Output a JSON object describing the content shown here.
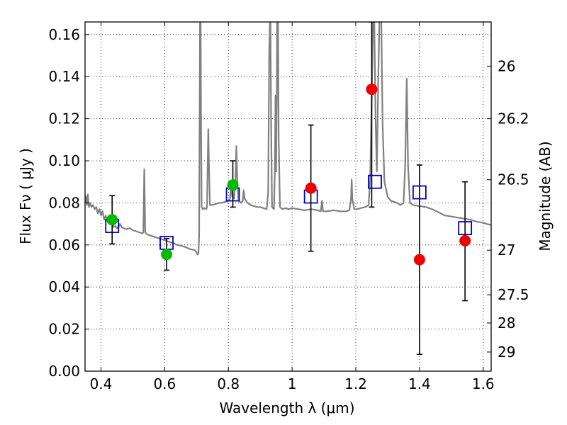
{
  "chart_data": {
    "type": "scatter",
    "xlabel": "Wavelength  λ (μm)",
    "ylabel": "Flux  Fν  ( μJy )",
    "ylabel_right": "Magnitude (AB)",
    "xlim": [
      0.35,
      1.625
    ],
    "ylim": [
      0.0,
      0.166
    ],
    "x_ticks": [
      0.4,
      0.6,
      0.8,
      1.0,
      1.2,
      1.4,
      1.6
    ],
    "x_tick_labels": [
      "0.4",
      "0.6",
      "0.8",
      "1",
      "1.2",
      "1.4",
      "1.6"
    ],
    "y_ticks": [
      0.0,
      0.02,
      0.04,
      0.06,
      0.08,
      0.1,
      0.12,
      0.14,
      0.16
    ],
    "y_tick_labels": [
      "0.00",
      "0.02",
      "0.04",
      "0.06",
      "0.08",
      "0.10",
      "0.12",
      "0.14",
      "0.16"
    ],
    "right_ticks": [
      {
        "label": "26",
        "flux": 0.145
      },
      {
        "label": "26.2",
        "flux": 0.12
      },
      {
        "label": "26.5",
        "flux": 0.091
      },
      {
        "label": "27",
        "flux": 0.0575
      },
      {
        "label": "27.5",
        "flux": 0.0363
      },
      {
        "label": "28",
        "flux": 0.0229
      },
      {
        "label": "29",
        "flux": 0.0091
      }
    ],
    "grid": true,
    "series": [
      {
        "kind": "model_spectrum",
        "color": "#808080",
        "points": [
          [
            0.35,
            0.08
          ],
          [
            0.353,
            0.083
          ],
          [
            0.356,
            0.079
          ],
          [
            0.359,
            0.084
          ],
          [
            0.362,
            0.078
          ],
          [
            0.366,
            0.08
          ],
          [
            0.37,
            0.078
          ],
          [
            0.375,
            0.079
          ],
          [
            0.38,
            0.077
          ],
          [
            0.385,
            0.078
          ],
          [
            0.39,
            0.075
          ],
          [
            0.395,
            0.077
          ],
          [
            0.4,
            0.074
          ],
          [
            0.405,
            0.076
          ],
          [
            0.41,
            0.072
          ],
          [
            0.415,
            0.074
          ],
          [
            0.42,
            0.071
          ],
          [
            0.425,
            0.072
          ],
          [
            0.43,
            0.07
          ],
          [
            0.436,
            0.071
          ],
          [
            0.44,
            0.0685
          ],
          [
            0.445,
            0.069
          ],
          [
            0.45,
            0.068
          ],
          [
            0.455,
            0.0685
          ],
          [
            0.46,
            0.07
          ],
          [
            0.465,
            0.0685
          ],
          [
            0.47,
            0.068
          ],
          [
            0.48,
            0.0675
          ],
          [
            0.49,
            0.068
          ],
          [
            0.5,
            0.067
          ],
          [
            0.51,
            0.0665
          ],
          [
            0.52,
            0.066
          ],
          [
            0.53,
            0.0655
          ],
          [
            0.533,
            0.066
          ],
          [
            0.536,
            0.096
          ],
          [
            0.539,
            0.066
          ],
          [
            0.545,
            0.065
          ],
          [
            0.555,
            0.0645
          ],
          [
            0.565,
            0.064
          ],
          [
            0.575,
            0.0635
          ],
          [
            0.585,
            0.063
          ],
          [
            0.595,
            0.0625
          ],
          [
            0.605,
            0.062
          ],
          [
            0.615,
            0.0615
          ],
          [
            0.625,
            0.061
          ],
          [
            0.64,
            0.06
          ],
          [
            0.655,
            0.0595
          ],
          [
            0.665,
            0.059
          ],
          [
            0.68,
            0.058
          ],
          [
            0.695,
            0.0575
          ],
          [
            0.7,
            0.0565
          ],
          [
            0.703,
            0.0555
          ],
          [
            0.706,
            0.056
          ],
          [
            0.708,
            0.064
          ],
          [
            0.71,
            0.13
          ],
          [
            0.711,
            0.166
          ],
          [
            0.713,
            0.166
          ],
          [
            0.714,
            0.12
          ],
          [
            0.716,
            0.078
          ],
          [
            0.72,
            0.077
          ],
          [
            0.725,
            0.0775
          ],
          [
            0.73,
            0.077
          ],
          [
            0.733,
            0.078
          ],
          [
            0.735,
            0.098
          ],
          [
            0.737,
            0.115
          ],
          [
            0.739,
            0.098
          ],
          [
            0.742,
            0.079
          ],
          [
            0.75,
            0.079
          ],
          [
            0.76,
            0.0795
          ],
          [
            0.77,
            0.08
          ],
          [
            0.78,
            0.08
          ],
          [
            0.79,
            0.0805
          ],
          [
            0.8,
            0.081
          ],
          [
            0.805,
            0.082
          ],
          [
            0.808,
            0.088
          ],
          [
            0.81,
            0.086
          ],
          [
            0.812,
            0.083
          ],
          [
            0.818,
            0.082
          ],
          [
            0.822,
            0.09
          ],
          [
            0.825,
            0.107
          ],
          [
            0.828,
            0.09
          ],
          [
            0.832,
            0.081
          ],
          [
            0.84,
            0.08
          ],
          [
            0.845,
            0.081
          ],
          [
            0.848,
            0.086
          ],
          [
            0.851,
            0.082
          ],
          [
            0.86,
            0.08
          ],
          [
            0.87,
            0.079
          ],
          [
            0.88,
            0.0785
          ],
          [
            0.89,
            0.078
          ],
          [
            0.9,
            0.078
          ],
          [
            0.91,
            0.0775
          ],
          [
            0.92,
            0.077
          ],
          [
            0.925,
            0.085
          ],
          [
            0.928,
            0.15
          ],
          [
            0.93,
            0.166
          ],
          [
            0.932,
            0.166
          ],
          [
            0.934,
            0.12
          ],
          [
            0.937,
            0.078
          ],
          [
            0.943,
            0.077
          ],
          [
            0.946,
            0.095
          ],
          [
            0.948,
            0.131
          ],
          [
            0.95,
            0.095
          ],
          [
            0.952,
            0.13
          ],
          [
            0.953,
            0.166
          ],
          [
            0.956,
            0.166
          ],
          [
            0.958,
            0.11
          ],
          [
            0.962,
            0.078
          ],
          [
            0.97,
            0.077
          ],
          [
            0.98,
            0.0775
          ],
          [
            0.99,
            0.077
          ],
          [
            1.0,
            0.0775
          ],
          [
            1.02,
            0.077
          ],
          [
            1.04,
            0.0765
          ],
          [
            1.06,
            0.077
          ],
          [
            1.08,
            0.0765
          ],
          [
            1.09,
            0.076
          ],
          [
            1.094,
            0.081
          ],
          [
            1.097,
            0.076
          ],
          [
            1.11,
            0.076
          ],
          [
            1.13,
            0.0765
          ],
          [
            1.15,
            0.076
          ],
          [
            1.17,
            0.076
          ],
          [
            1.18,
            0.0765
          ],
          [
            1.185,
            0.082
          ],
          [
            1.187,
            0.091
          ],
          [
            1.189,
            0.082
          ],
          [
            1.195,
            0.077
          ],
          [
            1.205,
            0.077
          ],
          [
            1.215,
            0.0775
          ],
          [
            1.23,
            0.078
          ],
          [
            1.24,
            0.079
          ],
          [
            1.245,
            0.09
          ],
          [
            1.25,
            0.13
          ],
          [
            1.254,
            0.166
          ],
          [
            1.258,
            0.166
          ],
          [
            1.262,
            0.12
          ],
          [
            1.266,
            0.095
          ],
          [
            1.27,
            0.135
          ],
          [
            1.274,
            0.166
          ],
          [
            1.28,
            0.166
          ],
          [
            1.284,
            0.118
          ],
          [
            1.29,
            0.09
          ],
          [
            1.3,
            0.083
          ],
          [
            1.31,
            0.081
          ],
          [
            1.32,
            0.0805
          ],
          [
            1.33,
            0.08
          ],
          [
            1.34,
            0.079
          ],
          [
            1.35,
            0.08
          ],
          [
            1.355,
            0.098
          ],
          [
            1.36,
            0.139
          ],
          [
            1.364,
            0.098
          ],
          [
            1.37,
            0.08
          ],
          [
            1.38,
            0.079
          ],
          [
            1.4,
            0.0785
          ],
          [
            1.42,
            0.078
          ],
          [
            1.44,
            0.077
          ],
          [
            1.46,
            0.0755
          ],
          [
            1.48,
            0.074
          ],
          [
            1.5,
            0.0735
          ],
          [
            1.52,
            0.073
          ],
          [
            1.54,
            0.0725
          ],
          [
            1.56,
            0.072
          ],
          [
            1.58,
            0.071
          ],
          [
            1.6,
            0.0705
          ],
          [
            1.61,
            0.07
          ],
          [
            1.625,
            0.0695
          ]
        ]
      },
      {
        "kind": "model_bandpass_flux",
        "marker": "open-square",
        "color": "#0000cc",
        "points": [
          {
            "x": 0.435,
            "y": 0.069
          },
          {
            "x": 0.606,
            "y": 0.061
          },
          {
            "x": 0.814,
            "y": 0.084
          },
          {
            "x": 1.059,
            "y": 0.083
          },
          {
            "x": 1.26,
            "y": 0.09
          },
          {
            "x": 1.4,
            "y": 0.085
          },
          {
            "x": 1.543,
            "y": 0.068
          }
        ]
      },
      {
        "kind": "observed_optical",
        "marker": "filled-circle",
        "color": "#00bb00",
        "points": [
          {
            "x": 0.435,
            "y": 0.072,
            "err_low": 0.0605,
            "err_high": 0.0835
          },
          {
            "x": 0.606,
            "y": 0.0555,
            "err_low": 0.048,
            "err_high": 0.063
          },
          {
            "x": 0.814,
            "y": 0.0885,
            "err_low": 0.078,
            "err_high": 0.1
          }
        ]
      },
      {
        "kind": "observed_nir",
        "marker": "filled-circle",
        "color": "#ee0000",
        "points": [
          {
            "x": 1.059,
            "y": 0.087,
            "err_low": 0.057,
            "err_high": 0.117
          },
          {
            "x": 1.25,
            "y": 0.134,
            "err_low": 0.078,
            "err_high": 0.166
          },
          {
            "x": 1.4,
            "y": 0.053,
            "err_low": 0.008,
            "err_high": 0.098
          },
          {
            "x": 1.543,
            "y": 0.062,
            "err_low": 0.0335,
            "err_high": 0.09
          }
        ]
      }
    ]
  }
}
